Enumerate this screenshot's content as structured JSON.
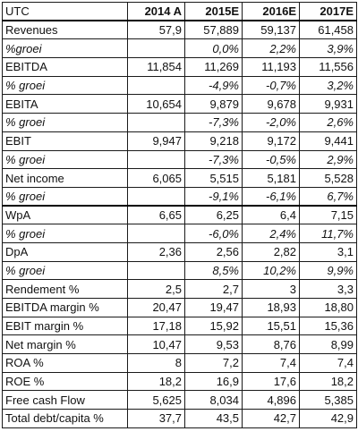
{
  "header": [
    "UTC",
    "2014 A",
    "2015E",
    "2016E",
    "2017E"
  ],
  "rows": [
    {
      "label": "Revenues",
      "values": [
        "57,9",
        "57,889",
        "59,137",
        "61,458"
      ],
      "italic": false
    },
    {
      "label": "%groei",
      "values": [
        "",
        "0,0%",
        "2,2%",
        "3,9%"
      ],
      "italic": true
    },
    {
      "label": "EBITDA",
      "values": [
        "11,854",
        "11,269",
        "11,193",
        "11,556"
      ],
      "italic": false
    },
    {
      "label": "% groei",
      "values": [
        "",
        "-4,9%",
        "-0,7%",
        "3,2%"
      ],
      "italic": true
    },
    {
      "label": "EBITA",
      "values": [
        "10,654",
        "9,879",
        "9,678",
        "9,931"
      ],
      "italic": false
    },
    {
      "label": "% groei",
      "values": [
        "",
        "-7,3%",
        "-2,0%",
        "2,6%"
      ],
      "italic": true
    },
    {
      "label": "EBIT",
      "values": [
        "9,947",
        "9,218",
        "9,172",
        "9,441"
      ],
      "italic": false
    },
    {
      "label": "% groei",
      "values": [
        "",
        "-7,3%",
        "-0,5%",
        "2,9%"
      ],
      "italic": true
    },
    {
      "label": "Net income",
      "values": [
        "6,065",
        "5,515",
        "5,181",
        "5,528"
      ],
      "italic": false
    },
    {
      "label": "% groei",
      "values": [
        "",
        "-9,1%",
        "-6,1%",
        "6,7%"
      ],
      "italic": true
    },
    {
      "label": "WpA",
      "values": [
        "6,65",
        "6,25",
        "6,4",
        "7,15"
      ],
      "italic": false,
      "sep": true
    },
    {
      "label": "% groei",
      "values": [
        "",
        "-6,0%",
        "2,4%",
        "11,7%"
      ],
      "italic": true
    },
    {
      "label": "DpA",
      "values": [
        "2,36",
        "2,56",
        "2,82",
        "3,1"
      ],
      "italic": false
    },
    {
      "label": "% groei",
      "values": [
        "",
        "8,5%",
        "10,2%",
        "9,9%"
      ],
      "italic": true
    },
    {
      "label": "Rendement %",
      "values": [
        "2,5",
        "2,7",
        "3",
        "3,3"
      ],
      "italic": false
    },
    {
      "label": "EBITDA margin %",
      "values": [
        "20,47",
        "19,47",
        "18,93",
        "18,80"
      ],
      "italic": false
    },
    {
      "label": "EBIT margin %",
      "values": [
        "17,18",
        "15,92",
        "15,51",
        "15,36"
      ],
      "italic": false
    },
    {
      "label": "Net margin %",
      "values": [
        "10,47",
        "9,53",
        "8,76",
        "8,99"
      ],
      "italic": false
    },
    {
      "label": "ROA %",
      "values": [
        "8",
        "7,2",
        "7,4",
        "7,4"
      ],
      "italic": false
    },
    {
      "label": "ROE %",
      "values": [
        "18,2",
        "16,9",
        "17,6",
        "18,2"
      ],
      "italic": false
    },
    {
      "label": "Free cash Flow",
      "values": [
        "5,625",
        "8,034",
        "4,896",
        "5,385"
      ],
      "italic": false
    },
    {
      "label": "Total debt/capita %",
      "values": [
        "37,7",
        "43,5",
        "42,7",
        "42,9"
      ],
      "italic": false
    }
  ]
}
